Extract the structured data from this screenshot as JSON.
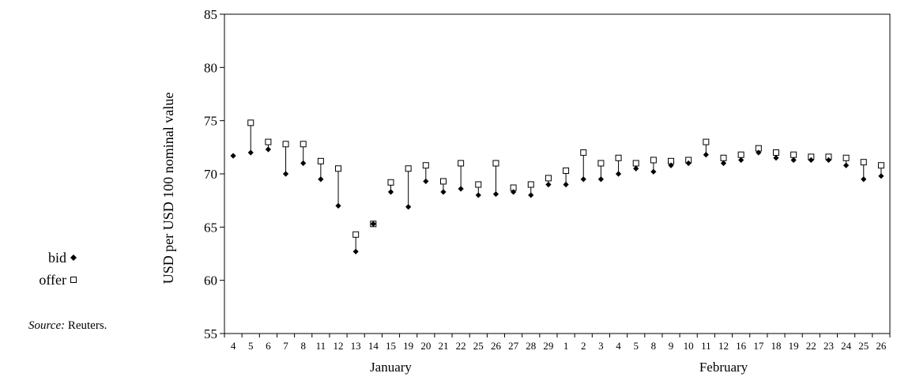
{
  "chart_data": {
    "type": "scatter",
    "ylabel": "USD per USD 100 nominal value",
    "ylim": [
      55,
      85
    ],
    "yticks": [
      55,
      60,
      65,
      70,
      75,
      80,
      85
    ],
    "categories": [
      "4",
      "5",
      "6",
      "7",
      "8",
      "11",
      "12",
      "13",
      "14",
      "15",
      "19",
      "20",
      "21",
      "22",
      "25",
      "26",
      "27",
      "28",
      "29",
      "1",
      "2",
      "3",
      "4",
      "5",
      "8",
      "9",
      "10",
      "11",
      "12",
      "16",
      "17",
      "18",
      "19",
      "22",
      "23",
      "24",
      "25",
      "26"
    ],
    "month_groups": [
      {
        "label": "January",
        "start": 0,
        "end": 18
      },
      {
        "label": "February",
        "start": 19,
        "end": 37
      }
    ],
    "series": [
      {
        "name": "bid",
        "marker": "diamond",
        "color": "#000000",
        "values": [
          71.7,
          72.0,
          72.3,
          70.0,
          71.0,
          69.5,
          67.0,
          62.7,
          65.3,
          68.3,
          66.9,
          69.3,
          68.3,
          68.6,
          68.0,
          68.1,
          68.3,
          68.0,
          69.0,
          69.0,
          69.5,
          69.5,
          70.0,
          70.5,
          70.2,
          70.8,
          71.0,
          71.8,
          71.0,
          71.3,
          72.0,
          71.5,
          71.3,
          71.3,
          71.3,
          70.8,
          69.5,
          69.8
        ]
      },
      {
        "name": "offer",
        "marker": "square-open",
        "color": "#000000",
        "values": [
          null,
          74.8,
          73.0,
          72.8,
          72.8,
          71.2,
          70.5,
          64.3,
          65.3,
          69.2,
          70.5,
          70.8,
          69.3,
          71.0,
          69.0,
          71.0,
          68.7,
          69.0,
          69.6,
          70.3,
          72.0,
          71.0,
          71.5,
          71.0,
          71.3,
          71.2,
          71.3,
          73.0,
          71.5,
          71.8,
          72.4,
          72.0,
          71.8,
          71.6,
          71.6,
          71.5,
          71.1,
          70.8
        ]
      }
    ],
    "grid": false,
    "legend_position": "left"
  },
  "legend": {
    "bid_label": "bid",
    "offer_label": "offer"
  },
  "source": {
    "prefix": "Source:",
    "text": "Reuters."
  }
}
